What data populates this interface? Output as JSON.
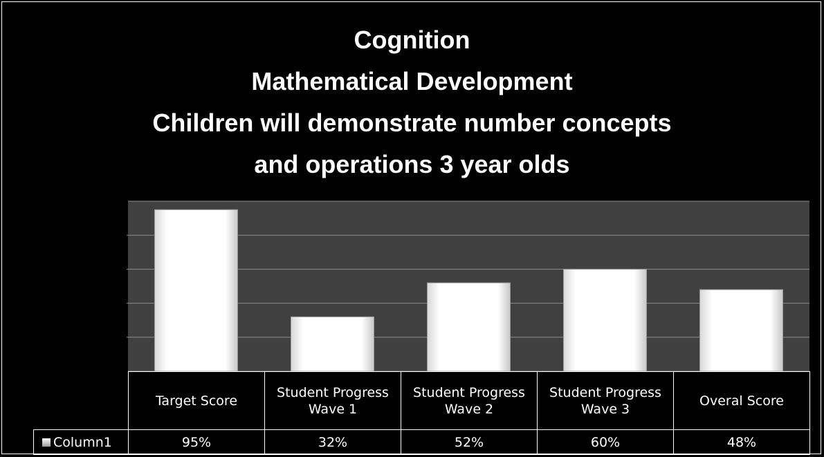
{
  "chart_data": {
    "type": "bar",
    "title": [
      "Cognition",
      "Mathematical Development",
      "Children will demonstrate number concepts",
      "and operations 3 year olds"
    ],
    "categories": [
      "Target Score",
      "Student Progress Wave 1",
      "Student Progress Wave 2",
      "Student Progress Wave 3",
      "Overal Score"
    ],
    "series": [
      {
        "name": "Column1",
        "color": "#ffffff",
        "values": [
          95,
          32,
          52,
          60,
          48
        ],
        "value_labels": [
          "95%",
          "32%",
          "52%",
          "60%",
          "48%"
        ]
      }
    ],
    "ylim": [
      0,
      100
    ],
    "yticks": [
      0,
      20,
      40,
      60,
      80,
      100
    ],
    "grid": true,
    "data_table": true
  }
}
